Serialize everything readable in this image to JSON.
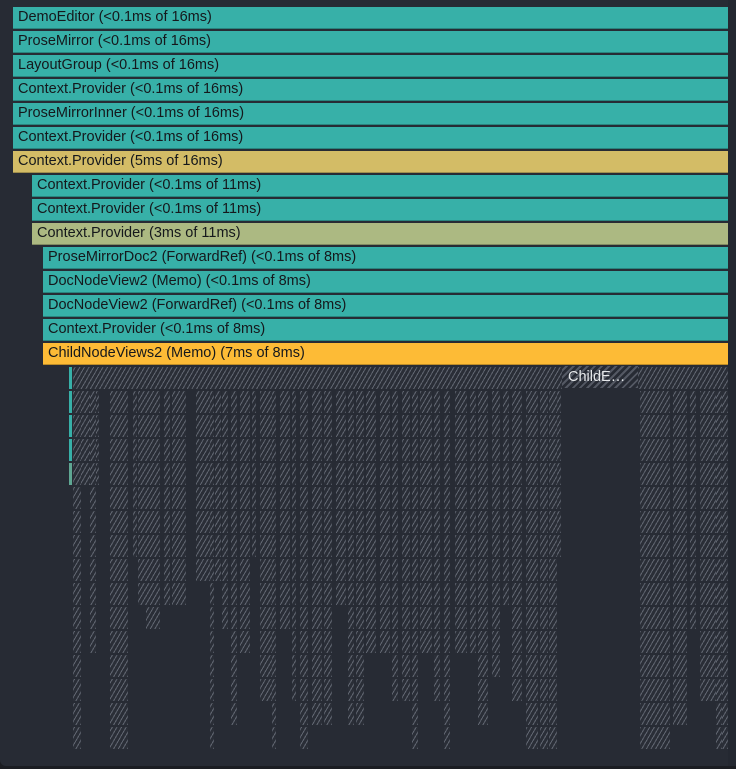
{
  "flamegraph": {
    "colors": {
      "background": "#272b34",
      "teal": "#37b0a8",
      "gold": "#d3bc66",
      "olive": "#acb982",
      "orange": "#fdbb36",
      "hatch": "#8c929e"
    },
    "bars": [
      {
        "label": "DemoEditor (<0.1ms of 16ms)",
        "depth": 0,
        "color": "teal"
      },
      {
        "label": "ProseMirror (<0.1ms of 16ms)",
        "depth": 1,
        "color": "teal"
      },
      {
        "label": "LayoutGroup (<0.1ms of 16ms)",
        "depth": 2,
        "color": "teal"
      },
      {
        "label": "Context.Provider (<0.1ms of 16ms)",
        "depth": 3,
        "color": "teal"
      },
      {
        "label": "ProseMirrorInner (<0.1ms of 16ms)",
        "depth": 4,
        "color": "teal"
      },
      {
        "label": "Context.Provider (<0.1ms of 16ms)",
        "depth": 5,
        "color": "teal"
      },
      {
        "label": "Context.Provider (5ms of 16ms)",
        "depth": 6,
        "color": "gold"
      },
      {
        "label": "Context.Provider (<0.1ms of 11ms)",
        "depth": 7,
        "color": "teal"
      },
      {
        "label": "Context.Provider (<0.1ms of 11ms)",
        "depth": 8,
        "color": "teal"
      },
      {
        "label": "Context.Provider (3ms of 11ms)",
        "depth": 9,
        "color": "olive"
      },
      {
        "label": "ProseMirrorDoc2 (ForwardRef) (<0.1ms of 8ms)",
        "depth": 10,
        "color": "teal"
      },
      {
        "label": "DocNodeView2 (Memo) (<0.1ms of 8ms)",
        "depth": 11,
        "color": "teal"
      },
      {
        "label": "DocNodeView2 (ForwardRef) (<0.1ms of 8ms)",
        "depth": 12,
        "color": "teal"
      },
      {
        "label": "Context.Provider (<0.1ms of 8ms)",
        "depth": 13,
        "color": "teal"
      },
      {
        "label": "ChildNodeViews2 (Memo) (7ms of 8ms)",
        "depth": 14,
        "color": "orange"
      }
    ],
    "collapsed_label": "ChildE…"
  }
}
